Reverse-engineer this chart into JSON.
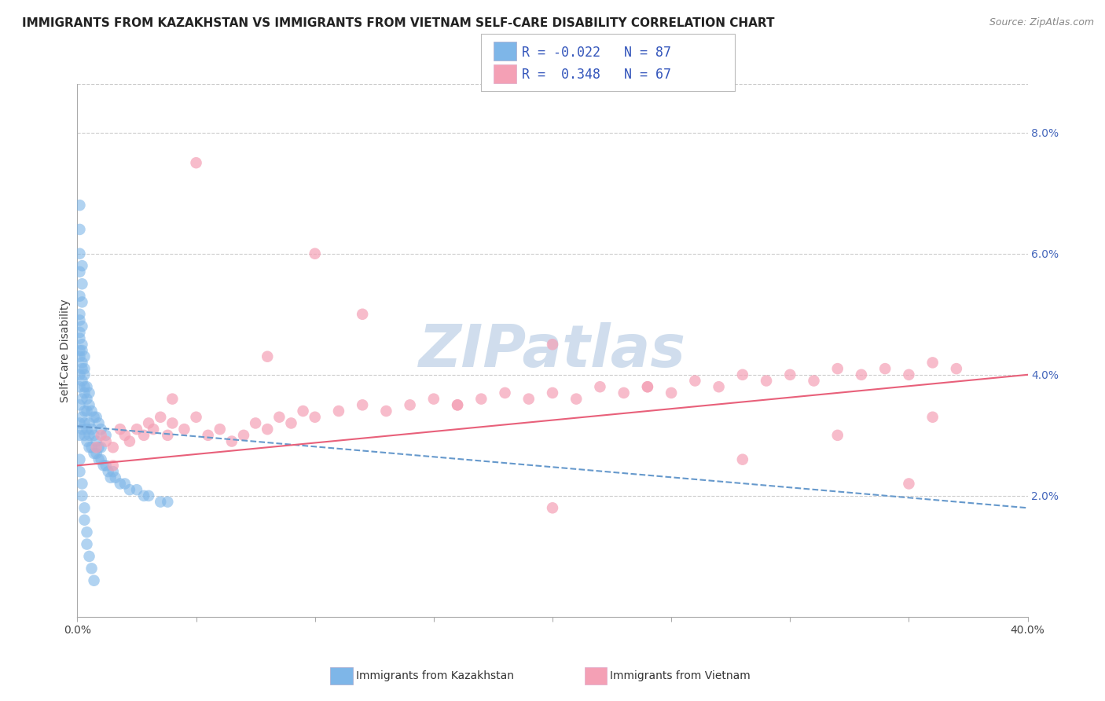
{
  "title": "IMMIGRANTS FROM KAZAKHSTAN VS IMMIGRANTS FROM VIETNAM SELF-CARE DISABILITY CORRELATION CHART",
  "source": "Source: ZipAtlas.com",
  "ylabel": "Self-Care Disability",
  "y_ticks": [
    0.02,
    0.04,
    0.06,
    0.08
  ],
  "y_tick_labels": [
    "2.0%",
    "4.0%",
    "6.0%",
    "8.0%"
  ],
  "xlim": [
    0.0,
    0.4
  ],
  "ylim": [
    0.0,
    0.088
  ],
  "kazakhstan_R": -0.022,
  "kazakhstan_N": 87,
  "vietnam_R": 0.348,
  "vietnam_N": 67,
  "kazakhstan_color": "#7EB6E8",
  "vietnam_color": "#F4A0B5",
  "kazakhstan_line_color": "#6699CC",
  "vietnam_line_color": "#E8607A",
  "watermark": "ZIPatlas",
  "watermark_color": "#C8D8EA",
  "title_fontsize": 11,
  "axis_label_fontsize": 10,
  "tick_fontsize": 10,
  "legend_fontsize": 11,
  "kaz_x": [
    0.001,
    0.001,
    0.001,
    0.001,
    0.001,
    0.001,
    0.001,
    0.001,
    0.001,
    0.001,
    0.001,
    0.001,
    0.001,
    0.001,
    0.001,
    0.002,
    0.002,
    0.002,
    0.002,
    0.002,
    0.002,
    0.002,
    0.002,
    0.002,
    0.002,
    0.002,
    0.002,
    0.003,
    0.003,
    0.003,
    0.003,
    0.003,
    0.003,
    0.003,
    0.003,
    0.004,
    0.004,
    0.004,
    0.004,
    0.004,
    0.005,
    0.005,
    0.005,
    0.005,
    0.006,
    0.006,
    0.006,
    0.007,
    0.007,
    0.007,
    0.008,
    0.008,
    0.009,
    0.009,
    0.01,
    0.01,
    0.011,
    0.012,
    0.013,
    0.014,
    0.015,
    0.016,
    0.018,
    0.02,
    0.022,
    0.025,
    0.028,
    0.03,
    0.035,
    0.038,
    0.001,
    0.001,
    0.001,
    0.002,
    0.002,
    0.003,
    0.003,
    0.004,
    0.004,
    0.005,
    0.005,
    0.006,
    0.007,
    0.008,
    0.009,
    0.01,
    0.012
  ],
  "kaz_y": [
    0.03,
    0.032,
    0.035,
    0.038,
    0.04,
    0.043,
    0.046,
    0.049,
    0.053,
    0.057,
    0.06,
    0.064,
    0.068,
    0.026,
    0.024,
    0.031,
    0.033,
    0.036,
    0.039,
    0.042,
    0.045,
    0.048,
    0.052,
    0.055,
    0.058,
    0.022,
    0.02,
    0.03,
    0.032,
    0.034,
    0.037,
    0.04,
    0.043,
    0.018,
    0.016,
    0.029,
    0.031,
    0.034,
    0.014,
    0.012,
    0.028,
    0.03,
    0.032,
    0.01,
    0.028,
    0.031,
    0.008,
    0.027,
    0.03,
    0.006,
    0.027,
    0.029,
    0.026,
    0.028,
    0.026,
    0.028,
    0.025,
    0.025,
    0.024,
    0.023,
    0.024,
    0.023,
    0.022,
    0.022,
    0.021,
    0.021,
    0.02,
    0.02,
    0.019,
    0.019,
    0.044,
    0.047,
    0.05,
    0.041,
    0.044,
    0.038,
    0.041,
    0.036,
    0.038,
    0.035,
    0.037,
    0.034,
    0.033,
    0.033,
    0.032,
    0.031,
    0.03
  ],
  "viet_x": [
    0.008,
    0.01,
    0.012,
    0.015,
    0.018,
    0.02,
    0.022,
    0.025,
    0.028,
    0.03,
    0.032,
    0.035,
    0.038,
    0.04,
    0.045,
    0.05,
    0.055,
    0.06,
    0.065,
    0.07,
    0.075,
    0.08,
    0.085,
    0.09,
    0.095,
    0.1,
    0.11,
    0.12,
    0.13,
    0.14,
    0.15,
    0.16,
    0.17,
    0.18,
    0.19,
    0.2,
    0.21,
    0.22,
    0.23,
    0.24,
    0.25,
    0.26,
    0.27,
    0.28,
    0.29,
    0.3,
    0.31,
    0.32,
    0.33,
    0.34,
    0.35,
    0.36,
    0.37,
    0.015,
    0.04,
    0.08,
    0.12,
    0.16,
    0.2,
    0.24,
    0.28,
    0.32,
    0.36,
    0.05,
    0.1,
    0.2,
    0.35
  ],
  "viet_y": [
    0.028,
    0.03,
    0.029,
    0.028,
    0.031,
    0.03,
    0.029,
    0.031,
    0.03,
    0.032,
    0.031,
    0.033,
    0.03,
    0.032,
    0.031,
    0.033,
    0.03,
    0.031,
    0.029,
    0.03,
    0.032,
    0.031,
    0.033,
    0.032,
    0.034,
    0.033,
    0.034,
    0.035,
    0.034,
    0.035,
    0.036,
    0.035,
    0.036,
    0.037,
    0.036,
    0.037,
    0.036,
    0.038,
    0.037,
    0.038,
    0.037,
    0.039,
    0.038,
    0.04,
    0.039,
    0.04,
    0.039,
    0.041,
    0.04,
    0.041,
    0.04,
    0.042,
    0.041,
    0.025,
    0.036,
    0.043,
    0.05,
    0.035,
    0.045,
    0.038,
    0.026,
    0.03,
    0.033,
    0.075,
    0.06,
    0.018,
    0.022
  ]
}
